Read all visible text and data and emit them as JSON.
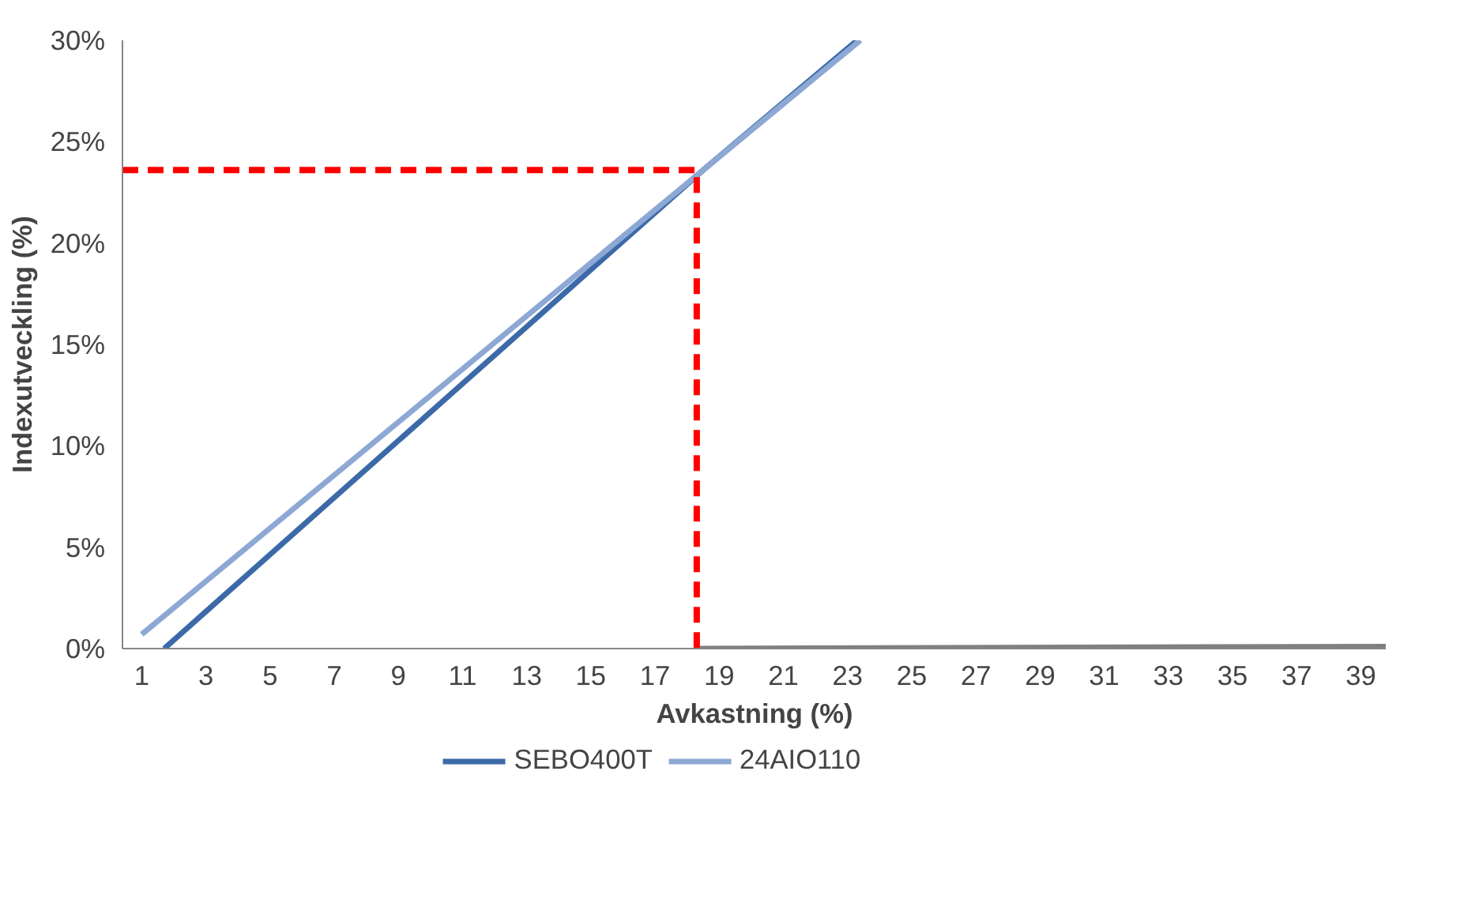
{
  "chart_data": {
    "type": "line",
    "xlabel": "Avkastning (%)",
    "ylabel": "Indexutveckling (%)",
    "xlim": [
      0.4,
      39.8
    ],
    "xticks": [
      1,
      3,
      5,
      7,
      9,
      11,
      13,
      15,
      17,
      19,
      21,
      23,
      25,
      27,
      29,
      31,
      33,
      35,
      37,
      39
    ],
    "ylim": [
      0,
      30
    ],
    "yticks": [
      {
        "value": 0,
        "label": "0%"
      },
      {
        "value": 5,
        "label": "5%"
      },
      {
        "value": 10,
        "label": "10%"
      },
      {
        "value": 15,
        "label": "15%"
      },
      {
        "value": 20,
        "label": "20%"
      },
      {
        "value": 25,
        "label": "25%"
      },
      {
        "value": 30,
        "label": "30%"
      }
    ],
    "grid": false,
    "legend": "bottom",
    "marker": "none",
    "series": [
      {
        "name": "SEBO400T",
        "color": "#3c6aa8",
        "x": [
          1.7,
          18.5,
          23.3
        ],
        "values": [
          0,
          23.6,
          30
        ]
      },
      {
        "name": "24AIO110",
        "color": "#8da8d4",
        "x": [
          1,
          18.5,
          23.4
        ],
        "values": [
          0.7,
          23.6,
          30
        ]
      },
      {
        "color": "#808080",
        "x": [
          18.3,
          39.8
        ],
        "values": [
          0,
          0.1
        ]
      },
      {
        "color": "#ff0000",
        "line_style": "dashed",
        "x": [
          0.4,
          18.3,
          18.3
        ],
        "values": [
          23.6,
          23.6,
          0
        ]
      }
    ]
  }
}
